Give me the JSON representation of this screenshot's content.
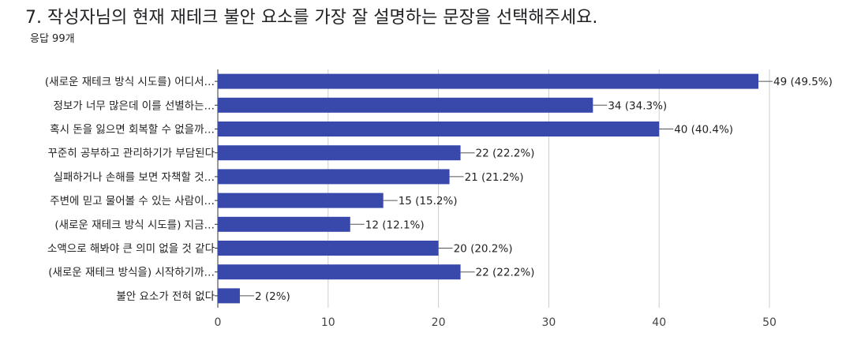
{
  "question": {
    "title": "7. 작성자님의 현재 재테크 불안 요소를 가장 잘 설명하는 문장을 선택해주세요.",
    "responses": "응답 99개"
  },
  "colors": {
    "bar": "#3949ab",
    "grid": "#cccccc",
    "axis": "#333333"
  },
  "chart_data": {
    "type": "bar",
    "orientation": "horizontal",
    "categories": [
      "(새로운 재테크 방식 시도를) 어디서…",
      "정보가 너무 많은데 이를 선별하는…",
      "혹시 돈을 잃으면 회복할 수 없을까…",
      "꾸준히 공부하고 관리하기가 부담된다",
      "실패하거나 손해를 보면 자책할 것…",
      "주변에 믿고 물어볼 수 있는 사람이…",
      "(새로운 재테크 방식 시도를) 지금…",
      "소액으로 해봐야 큰 의미 없을 것 같다",
      "(새로운 재테크 방식을) 시작하기까…",
      "불안 요소가 전혀 없다"
    ],
    "values": [
      49,
      34,
      40,
      22,
      21,
      15,
      12,
      20,
      22,
      2
    ],
    "value_labels": [
      "49 (49.5%)",
      "34 (34.3%)",
      "40 (40.4%)",
      "22 (22.2%)",
      "21 (21.2%)",
      "15 (15.2%)",
      "12 (12.1%)",
      "20 (20.2%)",
      "22 (22.2%)",
      "2 (2%)"
    ],
    "xlim": [
      0,
      50
    ],
    "xticks": [
      0,
      10,
      20,
      30,
      40,
      50
    ],
    "grid": true
  }
}
